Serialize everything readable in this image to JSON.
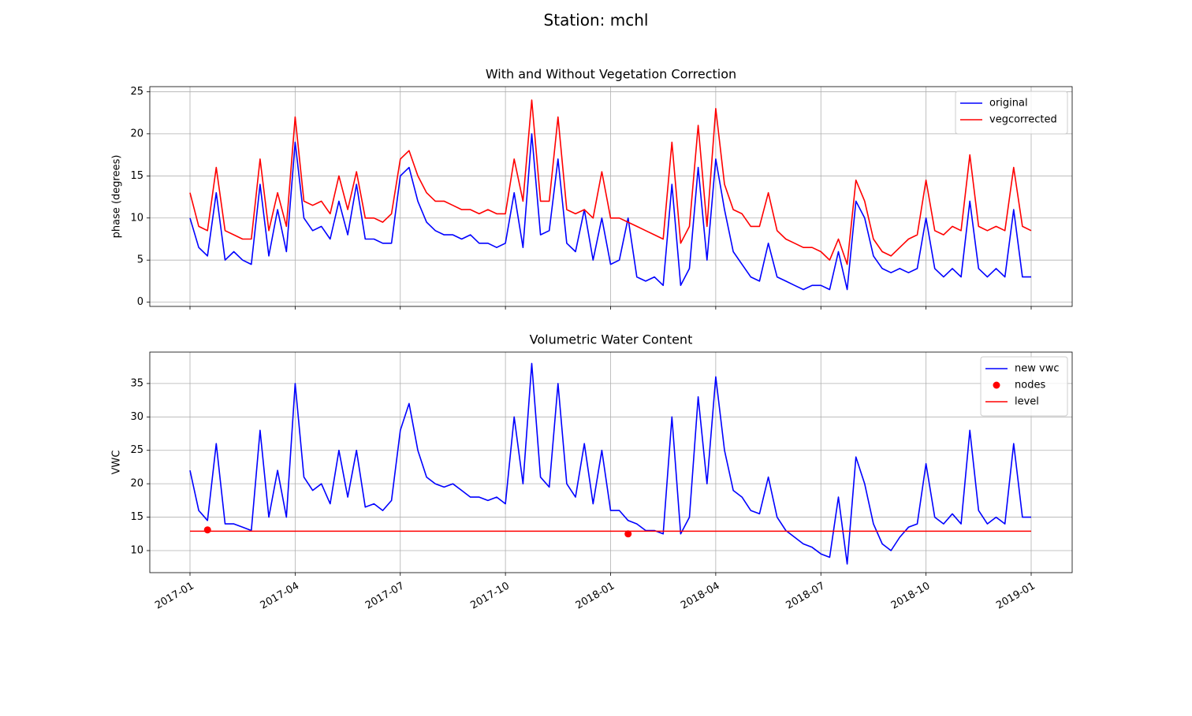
{
  "title": "Station: mchl",
  "chart_data": [
    {
      "type": "line",
      "title": "With and Without Vegetation Correction",
      "ylabel": "phase (degrees)",
      "ylim": [
        -0.5,
        25.6
      ],
      "yticks": [
        0,
        5,
        10,
        15,
        20,
        25
      ],
      "grid": true,
      "legend": "upper right",
      "series": [
        {
          "name": "original",
          "color": "#0000ff",
          "values": [
            10,
            6.5,
            5.5,
            13,
            5,
            6,
            5,
            4.5,
            14,
            5.5,
            11,
            6,
            19,
            10,
            8.5,
            9,
            7.5,
            12,
            8,
            14,
            7.5,
            7.5,
            7,
            7,
            15,
            16,
            12,
            9.5,
            8.5,
            8,
            8,
            7.5,
            8,
            7,
            7,
            6.5,
            7,
            13,
            6.5,
            20,
            8,
            8.5,
            17,
            7,
            6,
            11,
            5,
            10,
            4.5,
            5,
            10,
            3,
            2.5,
            3,
            2,
            14,
            2,
            4,
            16,
            5,
            17,
            11,
            6,
            4.5,
            3,
            2.5,
            7,
            3,
            2.5,
            2,
            1.5,
            2,
            2,
            1.5,
            6,
            1.5,
            12,
            10,
            5.5,
            4,
            3.5,
            4,
            3.5,
            4,
            10,
            4,
            3,
            4,
            3,
            12,
            4,
            3,
            4,
            3,
            11,
            3,
            3
          ]
        },
        {
          "name": "vegcorrected",
          "color": "#ff0000",
          "values": [
            13,
            9,
            8.5,
            16,
            8.5,
            8,
            7.5,
            7.5,
            17,
            8.5,
            13,
            9,
            22,
            12,
            11.5,
            12,
            10.5,
            15,
            11,
            15.5,
            10,
            10,
            9.5,
            10.5,
            17,
            18,
            15,
            13,
            12,
            12,
            11.5,
            11,
            11,
            10.5,
            11,
            10.5,
            10.5,
            17,
            12,
            24,
            12,
            12,
            22,
            11,
            10.5,
            11,
            10,
            15.5,
            10,
            10,
            9.5,
            9,
            8.5,
            8,
            7.5,
            19,
            7,
            9,
            21,
            9,
            23,
            14,
            11,
            10.5,
            9,
            9,
            13,
            8.5,
            7.5,
            7,
            6.5,
            6.5,
            6,
            5,
            7.5,
            4.5,
            14.5,
            12,
            7.5,
            6,
            5.5,
            6.5,
            7.5,
            8,
            14.5,
            8.5,
            8,
            9,
            8.5,
            17.5,
            9,
            8.5,
            9,
            8.5,
            16,
            9,
            8.5
          ]
        }
      ]
    },
    {
      "type": "line",
      "title": "Volumetric Water Content",
      "ylabel": "VWC",
      "ylim": [
        6.7,
        39.7
      ],
      "yticks": [
        10,
        15,
        20,
        25,
        30,
        35
      ],
      "grid": true,
      "legend": "upper right",
      "categories": [
        "2017-01",
        null,
        null,
        null,
        null,
        null,
        null,
        null,
        null,
        null,
        null,
        null,
        "2017-04",
        null,
        null,
        null,
        null,
        null,
        null,
        null,
        null,
        null,
        null,
        null,
        "2017-07",
        null,
        null,
        null,
        null,
        null,
        null,
        null,
        null,
        null,
        null,
        null,
        "2017-10",
        null,
        null,
        null,
        null,
        null,
        null,
        null,
        null,
        null,
        null,
        null,
        "2018-01",
        null,
        null,
        null,
        null,
        null,
        null,
        null,
        null,
        null,
        null,
        null,
        "2018-04",
        null,
        null,
        null,
        null,
        null,
        null,
        null,
        null,
        null,
        null,
        null,
        "2018-07",
        null,
        null,
        null,
        null,
        null,
        null,
        null,
        null,
        null,
        null,
        null,
        "2018-10",
        null,
        null,
        null,
        null,
        null,
        null,
        null,
        null,
        null,
        null,
        null,
        "2019-01"
      ],
      "series": [
        {
          "name": "new vwc",
          "color": "#0000ff",
          "values": [
            22,
            16,
            14.5,
            26,
            14,
            14,
            13.5,
            13,
            28,
            15,
            22,
            15,
            35,
            21,
            19,
            20,
            17,
            25,
            18,
            25,
            16.5,
            17,
            16,
            17.5,
            28,
            32,
            25,
            21,
            20,
            19.5,
            20,
            19,
            18,
            18,
            17.5,
            18,
            17,
            30,
            20,
            38,
            21,
            19.5,
            35,
            20,
            18,
            26,
            17,
            25,
            16,
            16,
            14.5,
            14,
            13,
            13,
            12.5,
            30,
            12.5,
            15,
            33,
            20,
            36,
            25,
            19,
            18,
            16,
            15.5,
            21,
            15,
            13,
            12,
            11,
            10.5,
            9.5,
            9,
            18,
            8,
            24,
            20,
            14,
            11,
            10,
            12,
            13.5,
            14,
            23,
            15,
            14,
            15.5,
            14,
            28,
            16,
            14,
            15,
            14,
            26,
            15,
            15
          ]
        },
        {
          "name": "nodes",
          "color": "#ff0000",
          "marker": "o",
          "values": [
            null,
            null,
            13.1,
            null,
            null,
            null,
            null,
            null,
            null,
            null,
            null,
            null,
            null,
            null,
            null,
            null,
            null,
            null,
            null,
            null,
            null,
            null,
            null,
            null,
            null,
            null,
            null,
            null,
            null,
            null,
            null,
            null,
            null,
            null,
            null,
            null,
            null,
            null,
            null,
            null,
            null,
            null,
            null,
            null,
            null,
            null,
            null,
            null,
            null,
            null,
            12.5,
            null,
            null,
            null,
            null,
            null,
            null,
            null,
            null,
            null,
            null,
            null,
            null,
            null,
            null,
            null,
            null,
            null,
            null,
            null,
            null,
            null,
            null,
            null,
            null,
            null,
            null,
            null,
            null,
            null,
            null,
            null,
            null,
            null,
            null,
            null,
            null,
            null,
            null,
            null,
            null,
            null,
            null,
            null,
            null,
            null,
            null
          ]
        },
        {
          "name": "level",
          "color": "#ff0000",
          "hline": 12.9
        }
      ]
    }
  ]
}
